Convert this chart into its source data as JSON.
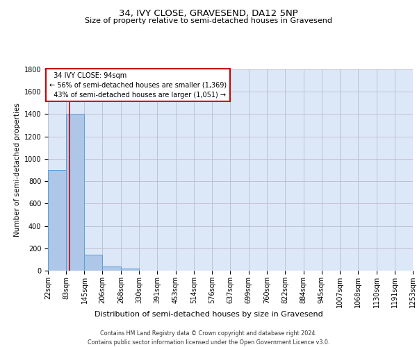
{
  "title1": "34, IVY CLOSE, GRAVESEND, DA12 5NP",
  "title2": "Size of property relative to semi-detached houses in Gravesend",
  "xlabel": "Distribution of semi-detached houses by size in Gravesend",
  "ylabel": "Number of semi-detached properties",
  "property_size": 94,
  "property_label": "34 IVY CLOSE: 94sqm",
  "pct_smaller": 56,
  "n_smaller": 1369,
  "pct_larger": 43,
  "n_larger": 1051,
  "bar_color": "#aec6e8",
  "bar_edge_color": "#5a9fd4",
  "vline_color": "#cc0000",
  "annotation_box_color": "#cc0000",
  "background_color": "#dce8f8",
  "grid_color": "#bbbbcc",
  "bin_edges": [
    22,
    83,
    145,
    206,
    268,
    330,
    391,
    453,
    514,
    576,
    637,
    699,
    760,
    822,
    884,
    945,
    1007,
    1068,
    1130,
    1191,
    1253
  ],
  "bin_labels": [
    "22sqm",
    "83sqm",
    "145sqm",
    "206sqm",
    "268sqm",
    "330sqm",
    "391sqm",
    "453sqm",
    "514sqm",
    "576sqm",
    "637sqm",
    "699sqm",
    "760sqm",
    "822sqm",
    "884sqm",
    "945sqm",
    "1007sqm",
    "1068sqm",
    "1130sqm",
    "1191sqm",
    "1253sqm"
  ],
  "bar_heights": [
    900,
    1400,
    140,
    35,
    20,
    0,
    0,
    0,
    0,
    0,
    0,
    0,
    0,
    0,
    0,
    0,
    0,
    0,
    0,
    0
  ],
  "ylim": [
    0,
    1800
  ],
  "yticks": [
    0,
    200,
    400,
    600,
    800,
    1000,
    1200,
    1400,
    1600,
    1800
  ],
  "footer1": "Contains HM Land Registry data © Crown copyright and database right 2024.",
  "footer2": "Contains public sector information licensed under the Open Government Licence v3.0.",
  "title1_fontsize": 9.5,
  "title2_fontsize": 8.0,
  "ylabel_fontsize": 7.5,
  "xlabel_fontsize": 8.0,
  "tick_fontsize": 7.0,
  "ann_fontsize": 7.0,
  "footer_fontsize": 5.8
}
